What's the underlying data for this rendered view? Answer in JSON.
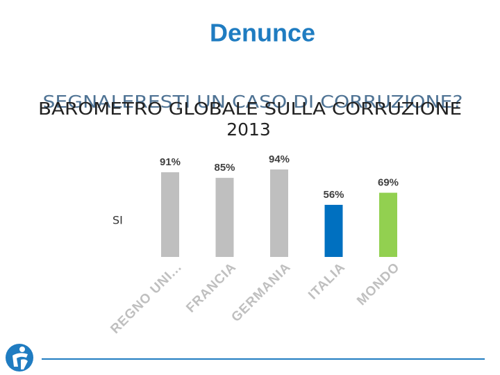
{
  "slide_title": "Denunce",
  "question": "SEGNALERESTI UN CASO DI CORRUZIONE?",
  "chart_data": {
    "type": "bar",
    "title_lines": [
      "BAROMETRO GLOBALE SULLA CORRUZIONE",
      "2013"
    ],
    "categories": [
      "REGNO UNI...",
      "FRANCIA",
      "GERMANIA",
      "ITALIA",
      "MONDO"
    ],
    "series": [
      {
        "name": "SI",
        "colors": [
          "#bfbfbf",
          "#bfbfbf",
          "#bfbfbf",
          "#0070c0",
          "#92d050"
        ],
        "values": [
          91,
          85,
          94,
          56,
          69
        ],
        "value_labels": [
          "91%",
          "85%",
          "94%",
          "56%",
          "69%"
        ]
      }
    ]
  }
}
